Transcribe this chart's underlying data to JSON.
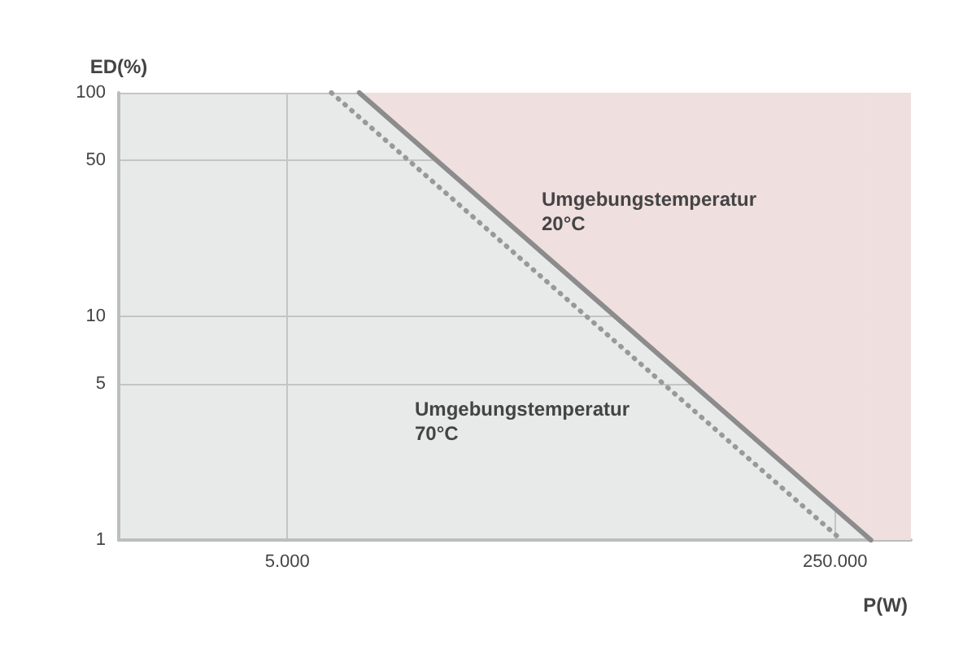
{
  "chart_data": {
    "type": "line",
    "xlabel": "P(W)",
    "ylabel": "ED(%)",
    "log": "xy",
    "grid": true,
    "xlim": [
      1500,
      430000
    ],
    "xticks": [
      {
        "value": 5000,
        "label": "5.000"
      },
      {
        "value": 250000,
        "label": "250.000"
      }
    ],
    "ylim": [
      1,
      100
    ],
    "yticks": [
      1,
      5,
      10,
      50,
      100
    ],
    "series": [
      {
        "type": "area",
        "color": "#8c8c8c",
        "x": [
          8360,
          323000
        ],
        "values": [
          100,
          1
        ]
      },
      {
        "color": "#999999",
        "line_style": "dotted",
        "x": [
          6850,
          262000
        ],
        "values": [
          100,
          1
        ]
      }
    ],
    "bands": [
      {
        "axis": "x",
        "from": 323000,
        "to": 430000,
        "color": "#f0dfdf"
      }
    ],
    "annotations": [
      "Umgebungstemperatur\n20°C",
      "Umgebungstemperatur\n70°C"
    ]
  }
}
